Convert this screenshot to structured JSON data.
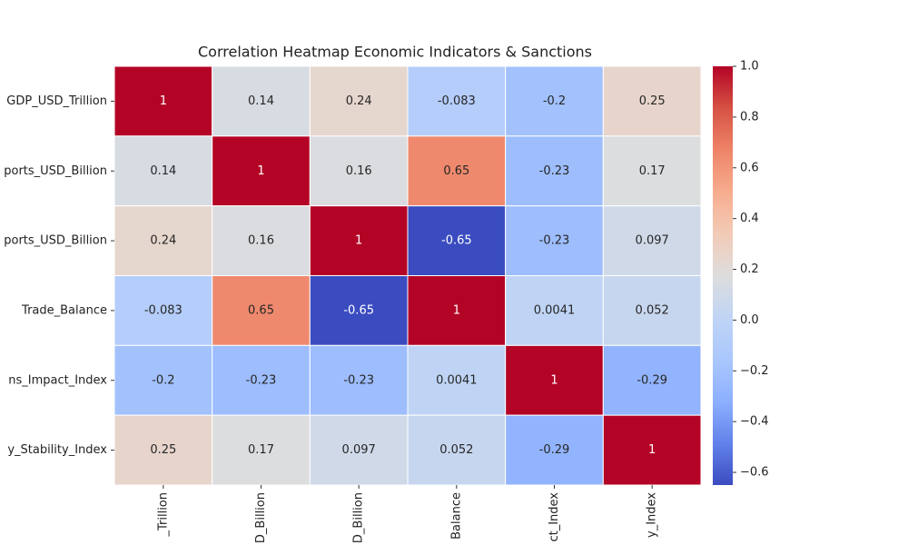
{
  "chart_data": {
    "type": "heatmap",
    "title": "Correlation Heatmap Economic Indicators & Sanctions",
    "colormap": "coolwarm",
    "x_categories": [
      "_Trillion",
      "D_Billion",
      "D_Billion",
      "Balance",
      "ct_Index",
      "y_Index"
    ],
    "y_categories": [
      "GDP_USD_Trillion",
      "ports_USD_Billion",
      "ports_USD_Billion",
      "Trade_Balance",
      "ns_Impact_Index",
      "y_Stability_Index"
    ],
    "values": [
      [
        1,
        0.14,
        0.24,
        -0.083,
        -0.2,
        0.25
      ],
      [
        0.14,
        1,
        0.16,
        0.65,
        -0.23,
        0.17
      ],
      [
        0.24,
        0.16,
        1,
        -0.65,
        -0.23,
        0.097
      ],
      [
        -0.083,
        0.65,
        -0.65,
        1,
        0.0041,
        0.052
      ],
      [
        -0.2,
        -0.23,
        -0.23,
        0.0041,
        1,
        -0.29
      ],
      [
        0.25,
        0.17,
        0.097,
        0.052,
        -0.29,
        1
      ]
    ],
    "clim": [
      -0.65,
      1
    ],
    "cticks": [
      {
        "value": -0.6,
        "label": "−0.6"
      },
      {
        "value": -0.4,
        "label": "−0.4"
      },
      {
        "value": -0.2,
        "label": "−0.2"
      },
      {
        "value": 0,
        "label": "0.0"
      },
      {
        "value": 0.2,
        "label": "0.2"
      },
      {
        "value": 0.4,
        "label": "0.4"
      },
      {
        "value": 0.6,
        "label": "0.6"
      },
      {
        "value": 0.8,
        "label": "0.8"
      },
      {
        "value": 1,
        "label": "1.0"
      }
    ]
  }
}
